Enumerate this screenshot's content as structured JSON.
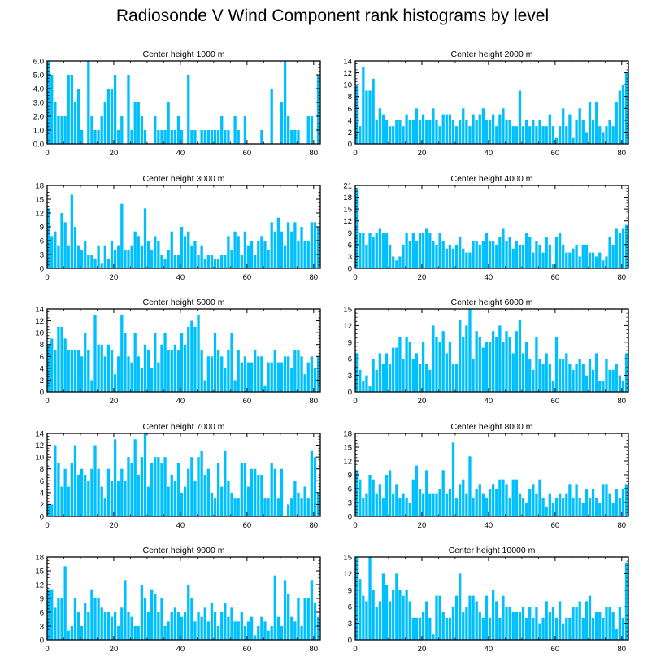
{
  "title": "Radiosonde V Wind Component rank histograms by level",
  "bar_color": "#00bfff",
  "chart_data": [
    {
      "type": "bar",
      "title": "Center height 1000 m",
      "xlim": [
        0,
        82
      ],
      "ylim": [
        0,
        6
      ],
      "xticks": [
        0,
        20,
        40,
        60,
        80
      ],
      "yticks": [
        "0.0",
        "1.0",
        "2.0",
        "3.0",
        "4.0",
        "5.0",
        "6.0"
      ],
      "values": [
        6,
        5,
        3,
        2,
        2,
        2,
        5,
        5,
        3,
        4,
        1,
        0,
        6,
        2,
        1,
        1,
        2,
        3,
        4,
        4,
        5,
        1,
        2,
        0,
        5,
        1,
        3,
        3,
        2,
        1,
        0,
        0,
        2,
        1,
        1,
        1,
        3,
        1,
        1,
        2,
        1,
        0,
        5,
        1,
        1,
        0,
        1,
        1,
        1,
        1,
        1,
        1,
        2,
        1,
        1,
        0,
        2,
        1,
        0,
        2,
        0,
        0,
        0,
        0,
        1,
        0,
        0,
        4,
        0,
        0,
        3,
        6,
        2,
        1,
        1,
        1,
        0,
        0,
        2,
        2,
        0,
        5
      ]
    },
    {
      "type": "bar",
      "title": "Center height 2000 m",
      "xlim": [
        0,
        82
      ],
      "ylim": [
        0,
        14
      ],
      "xticks": [
        0,
        20,
        40,
        60,
        80
      ],
      "yticks": [
        "0",
        "2",
        "4",
        "6",
        "8",
        "10",
        "12",
        "14"
      ],
      "values": [
        10,
        3,
        13,
        9,
        9,
        11,
        4,
        6,
        5,
        4,
        3,
        3,
        4,
        4,
        3,
        5,
        4,
        4,
        6,
        4,
        5,
        4,
        4,
        6,
        4,
        3,
        5,
        5,
        5,
        4,
        3,
        4,
        6,
        4,
        3,
        5,
        4,
        5,
        6,
        4,
        4,
        5,
        3,
        5,
        6,
        4,
        4,
        3,
        3,
        9,
        3,
        4,
        3,
        4,
        3,
        4,
        3,
        3,
        5,
        3,
        1,
        3,
        6,
        3,
        5,
        1,
        4,
        6,
        4,
        2,
        7,
        4,
        7,
        3,
        2,
        3,
        4,
        3,
        7,
        9,
        10,
        12
      ]
    },
    {
      "type": "bar",
      "title": "Center height 3000 m",
      "xlim": [
        0,
        82
      ],
      "ylim": [
        0,
        18
      ],
      "xticks": [
        0,
        20,
        40,
        60,
        80
      ],
      "yticks": [
        "0",
        "3",
        "6",
        "9",
        "12",
        "15",
        "18"
      ],
      "values": [
        13,
        7,
        8,
        5,
        12,
        10,
        5,
        16,
        9,
        5,
        4,
        6,
        3,
        3,
        2,
        5,
        1,
        5,
        2,
        6,
        4,
        5,
        14,
        4,
        4,
        5,
        8,
        7,
        5,
        13,
        6,
        4,
        7,
        6,
        3,
        2,
        4,
        8,
        3,
        3,
        9,
        7,
        8,
        5,
        6,
        3,
        5,
        2,
        3,
        3,
        2,
        2,
        3,
        3,
        7,
        4,
        8,
        7,
        3,
        8,
        5,
        6,
        3,
        6,
        7,
        6,
        4,
        10,
        8,
        11,
        8,
        5,
        10,
        8,
        10,
        6,
        9,
        6,
        6,
        10,
        10,
        9
      ]
    },
    {
      "type": "bar",
      "title": "Center height 4000 m",
      "xlim": [
        0,
        82
      ],
      "ylim": [
        0,
        21
      ],
      "xticks": [
        0,
        20,
        40,
        60,
        80
      ],
      "yticks": [
        "0",
        "3",
        "6",
        "9",
        "12",
        "15",
        "18",
        "21"
      ],
      "values": [
        20,
        9,
        9,
        6,
        9,
        8,
        9,
        10,
        9,
        9,
        6,
        3,
        2,
        3,
        6,
        9,
        7,
        9,
        7,
        9,
        9,
        10,
        9,
        7,
        6,
        9,
        7,
        5,
        6,
        5,
        6,
        8,
        5,
        4,
        4,
        7,
        7,
        6,
        7,
        9,
        7,
        7,
        6,
        8,
        10,
        7,
        8,
        5,
        7,
        6,
        6,
        9,
        8,
        4,
        7,
        6,
        4,
        8,
        6,
        1,
        8,
        9,
        6,
        4,
        4,
        5,
        6,
        3,
        6,
        6,
        4,
        4,
        3,
        4,
        2,
        3,
        8,
        6,
        10,
        9,
        10,
        11
      ]
    },
    {
      "type": "bar",
      "title": "Center height 5000 m",
      "xlim": [
        0,
        82
      ],
      "ylim": [
        0,
        14
      ],
      "xticks": [
        0,
        20,
        40,
        60,
        80
      ],
      "yticks": [
        "0",
        "2",
        "4",
        "6",
        "8",
        "10",
        "12",
        "14"
      ],
      "values": [
        8,
        9,
        7,
        11,
        11,
        9,
        7,
        7,
        7,
        7,
        6,
        10,
        7,
        2,
        13,
        8,
        8,
        6,
        8,
        7,
        3,
        6,
        13,
        10,
        6,
        5,
        10,
        6,
        4,
        8,
        7,
        4,
        10,
        5,
        8,
        10,
        7,
        7,
        8,
        7,
        10,
        8,
        11,
        12,
        11,
        13,
        7,
        2,
        6,
        6,
        10,
        7,
        6,
        4,
        7,
        10,
        2,
        7,
        5,
        6,
        5,
        5,
        7,
        6,
        6,
        1,
        5,
        5,
        7,
        5,
        5,
        6,
        6,
        4,
        7,
        7,
        6,
        3,
        5,
        6,
        4,
        6
      ]
    },
    {
      "type": "bar",
      "title": "Center height 6000 m",
      "xlim": [
        0,
        82
      ],
      "ylim": [
        0,
        15
      ],
      "xticks": [
        0,
        20,
        40,
        60,
        80
      ],
      "yticks": [
        "0",
        "3",
        "6",
        "9",
        "12",
        "15"
      ],
      "values": [
        7,
        4,
        2,
        3,
        1,
        6,
        4,
        7,
        5,
        7,
        5,
        8,
        8,
        10,
        6,
        10,
        9,
        6,
        7,
        5,
        9,
        5,
        4,
        12,
        10,
        9,
        11,
        7,
        9,
        5,
        5,
        13,
        10,
        12,
        15,
        6,
        11,
        10,
        8,
        9,
        9,
        11,
        10,
        12,
        9,
        11,
        10,
        7,
        11,
        13,
        7,
        9,
        6,
        4,
        10,
        6,
        5,
        7,
        5,
        2,
        10,
        6,
        6,
        7,
        5,
        4,
        5,
        6,
        5,
        3,
        6,
        4,
        7,
        2,
        2,
        6,
        4,
        4,
        5,
        3,
        2,
        7
      ]
    },
    {
      "type": "bar",
      "title": "Center height 7000 m",
      "xlim": [
        0,
        82
      ],
      "ylim": [
        0,
        14
      ],
      "xticks": [
        0,
        20,
        40,
        60,
        80
      ],
      "yticks": [
        "0",
        "2",
        "4",
        "6",
        "8",
        "10",
        "12",
        "14"
      ],
      "values": [
        2,
        2,
        12,
        9,
        5,
        8,
        5,
        9,
        12,
        7,
        8,
        7,
        6,
        8,
        12,
        8,
        5,
        3,
        8,
        6,
        13,
        6,
        8,
        6,
        10,
        9,
        13,
        7,
        10,
        14,
        5,
        9,
        10,
        10,
        9,
        10,
        5,
        7,
        6,
        9,
        4,
        5,
        8,
        10,
        6,
        10,
        11,
        7,
        8,
        4,
        3,
        9,
        5,
        11,
        6,
        4,
        3,
        3,
        9,
        9,
        5,
        8,
        8,
        7,
        7,
        3,
        3,
        9,
        8,
        3,
        8,
        0,
        2,
        3,
        6,
        4,
        3,
        5,
        3,
        11,
        10,
        4
      ]
    },
    {
      "type": "bar",
      "title": "Center height 8000 m",
      "xlim": [
        0,
        82
      ],
      "ylim": [
        0,
        18
      ],
      "xticks": [
        0,
        20,
        40,
        60,
        80
      ],
      "yticks": [
        "0",
        "3",
        "6",
        "9",
        "12",
        "15",
        "18"
      ],
      "values": [
        10,
        8,
        4,
        5,
        9,
        8,
        5,
        7,
        4,
        9,
        10,
        5,
        7,
        4,
        5,
        4,
        3,
        8,
        11,
        6,
        5,
        10,
        5,
        5,
        5,
        6,
        10,
        5,
        6,
        16,
        4,
        7,
        8,
        5,
        13,
        4,
        6,
        7,
        5,
        4,
        6,
        7,
        6,
        8,
        8,
        7,
        4,
        8,
        8,
        5,
        4,
        3,
        6,
        7,
        5,
        8,
        4,
        2,
        5,
        3,
        4,
        5,
        4,
        5,
        7,
        4,
        7,
        4,
        3,
        6,
        4,
        6,
        4,
        3,
        7,
        7,
        5,
        3,
        6,
        4,
        6,
        7
      ]
    },
    {
      "type": "bar",
      "title": "Center height 9000 m",
      "xlim": [
        0,
        82
      ],
      "ylim": [
        0,
        18
      ],
      "xticks": [
        0,
        20,
        40,
        60,
        80
      ],
      "yticks": [
        "0",
        "3",
        "6",
        "9",
        "12",
        "15",
        "18"
      ],
      "values": [
        11,
        11,
        7,
        9,
        9,
        16,
        2,
        3,
        9,
        6,
        3,
        8,
        6,
        11,
        9,
        9,
        7,
        6,
        6,
        5,
        6,
        3,
        7,
        13,
        6,
        5,
        3,
        3,
        12,
        9,
        6,
        11,
        10,
        6,
        9,
        3,
        4,
        6,
        7,
        6,
        5,
        6,
        12,
        9,
        4,
        6,
        5,
        7,
        4,
        8,
        6,
        3,
        6,
        8,
        5,
        7,
        4,
        4,
        6,
        3,
        4,
        5,
        1,
        3,
        5,
        4,
        2,
        3,
        14,
        5,
        3,
        13,
        10,
        5,
        4,
        9,
        3,
        9,
        9,
        13,
        8,
        5
      ]
    },
    {
      "type": "bar",
      "title": "Center height 10000 m",
      "xlim": [
        0,
        82
      ],
      "ylim": [
        0,
        15
      ],
      "xticks": [
        0,
        20,
        40,
        60,
        80
      ],
      "yticks": [
        "0",
        "3",
        "6",
        "9",
        "12",
        "15"
      ],
      "values": [
        15,
        11,
        8,
        7,
        15,
        9,
        6,
        7,
        12,
        10,
        7,
        9,
        12,
        9,
        8,
        9,
        7,
        4,
        4,
        4,
        5,
        7,
        4,
        1,
        8,
        8,
        5,
        4,
        4,
        6,
        8,
        12,
        5,
        6,
        8,
        8,
        7,
        5,
        4,
        8,
        4,
        9,
        7,
        4,
        8,
        6,
        6,
        5,
        5,
        5,
        6,
        4,
        6,
        4,
        6,
        3,
        4,
        7,
        5,
        6,
        4,
        7,
        3,
        4,
        4,
        6,
        6,
        7,
        4,
        7,
        8,
        4,
        5,
        5,
        4,
        6,
        6,
        5,
        2,
        6,
        4,
        14
      ]
    }
  ]
}
